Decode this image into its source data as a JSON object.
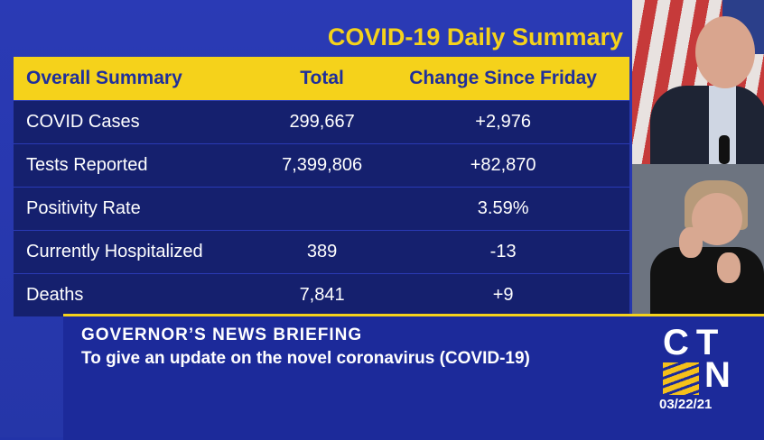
{
  "slide": {
    "title": "COVID-19 Daily Summary",
    "headers": [
      "Overall Summary",
      "Total",
      "Change Since Friday"
    ],
    "rows": [
      {
        "label": "COVID Cases",
        "total": "299,667",
        "change": "+2,976"
      },
      {
        "label": "Tests Reported",
        "total": "7,399,806",
        "change": "+82,870"
      },
      {
        "label": "Positivity Rate",
        "total": "",
        "change": "3.59%"
      },
      {
        "label": "Currently Hospitalized",
        "total": "389",
        "change": "-13"
      },
      {
        "label": "Deaths",
        "total": "7,841",
        "change": "+9"
      }
    ]
  },
  "lower_third": {
    "headline": "GOVERNOR’S  NEWS  BRIEFING",
    "subline": "To give an update on the novel coronavirus (COVID-19)"
  },
  "logo": {
    "top": "CT",
    "bottom": "N",
    "date": "03/22/21"
  },
  "colors": {
    "accent": "#f5d21b",
    "background": "#2536a8",
    "table_row": "#15206e"
  }
}
